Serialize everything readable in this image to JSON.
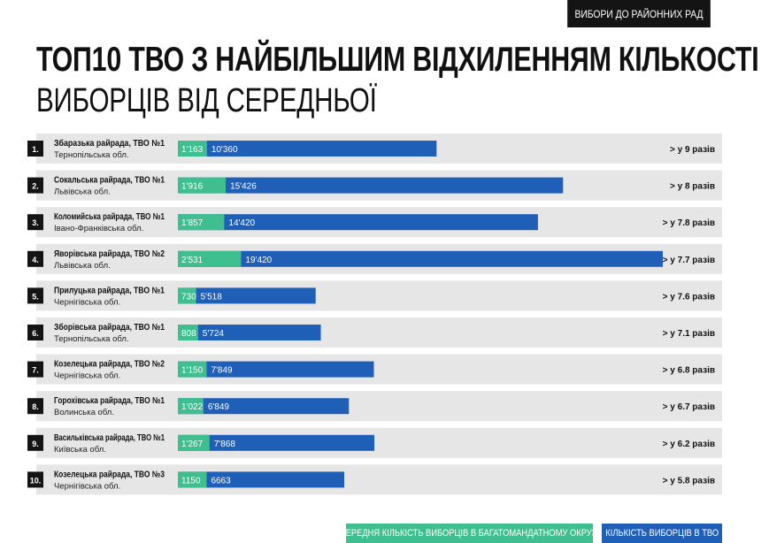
{
  "header": {
    "badge": "ВИБОРИ ДО РАЙОННИХ РАД",
    "title_line1": "ТОП10 ТВО З НАЙБІЛЬШИМ ВІДХИЛЕННЯМ КІЛЬКОСТІ",
    "title_line2": "ВИБОРЦІВ ВІД СЕРЕДНЬОЇ"
  },
  "colors": {
    "average": "#3fbf90",
    "tvo": "#1f5fb8",
    "row_bg": "#e6e6e6",
    "rank_bg": "#141414"
  },
  "legend": {
    "average": "СЕРЕДНЯ КІЛЬКІСТЬ ВИБОРЦІВ В БАГАТОМАНДАТНОМУ ОКРУЗІ",
    "tvo": "КІЛЬКІСТЬ ВИБОРЦІВ В ТВО"
  },
  "chart_data": {
    "type": "bar",
    "orientation": "horizontal",
    "rows": [
      {
        "rank": "1.",
        "name": "Збаразька райрада, ТВО №1",
        "region": "Тернопільська обл.",
        "average": 1163,
        "average_label": "1'163",
        "tvo": 10360,
        "tvo_label": "10'360",
        "ratio": "> у 9 разів"
      },
      {
        "rank": "2.",
        "name": "Сокальська райрада, ТВО №1",
        "region": "Львівська обл.",
        "average": 1916,
        "average_label": "1'916",
        "tvo": 15426,
        "tvo_label": "15'426",
        "ratio": "> у 8 разів"
      },
      {
        "rank": "3.",
        "name": "Коломийська райрада, ТВО №1",
        "region": "Івано-Франківська обл.",
        "average": 1857,
        "average_label": "1'857",
        "tvo": 14420,
        "tvo_label": "14'420",
        "ratio": "> у 7.8 разів"
      },
      {
        "rank": "4.",
        "name": "Яворівська райрада, ТВО №2",
        "region": "Львівська обл.",
        "average": 2531,
        "average_label": "2'531",
        "tvo": 19420,
        "tvo_label": "19'420",
        "ratio": "> у 7.7 разів"
      },
      {
        "rank": "5.",
        "name": "Прилуцька райрада, ТВО №1",
        "region": "Чернігівська обл.",
        "average": 730,
        "average_label": "730",
        "tvo": 5518,
        "tvo_label": "5'518",
        "ratio": "> у 7.6 разів"
      },
      {
        "rank": "6.",
        "name": "Зборівська райрада, ТВО №1",
        "region": "Тернопільська обл.",
        "average": 808,
        "average_label": "808",
        "tvo": 5724,
        "tvo_label": "5'724",
        "ratio": "> у 7.1 разів"
      },
      {
        "rank": "7.",
        "name": "Козелецька райрада, ТВО №2",
        "region": "Чернігівська обл.",
        "average": 1150,
        "average_label": "1'150",
        "tvo": 7849,
        "tvo_label": "7'849",
        "ratio": "> у 6.8 разів"
      },
      {
        "rank": "8.",
        "name": "Горохівська райрада, ТВО №1",
        "region": "Волинська обл.",
        "average": 1022,
        "average_label": "1'022",
        "tvo": 6849,
        "tvo_label": "6'849",
        "ratio": "> у 6.7 разів"
      },
      {
        "rank": "9.",
        "name": "Васильківська райрада, ТВО №1",
        "region": "Київська обл.",
        "average": 1267,
        "average_label": "1'267",
        "tvo": 7868,
        "tvo_label": "7'868",
        "ratio": "> у 6.2 разів"
      },
      {
        "rank": "10.",
        "name": "Козелецька райрада, ТВО №3",
        "region": "Чернігівська обл.",
        "average": 1150,
        "average_label": "1150",
        "tvo": 6663,
        "tvo_label": "6663",
        "ratio": "> у 5.8 разів"
      }
    ],
    "xlim": [
      0,
      21000
    ],
    "grid": false
  }
}
